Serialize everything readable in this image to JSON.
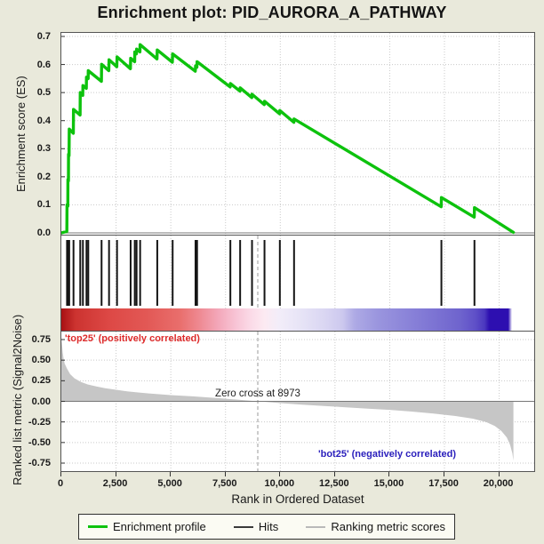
{
  "title": "Enrichment plot: PID_AURORA_A_PATHWAY",
  "axes": {
    "x_label": "Rank in Ordered Dataset",
    "es_axis_label": "Enrichment score (ES)",
    "metric_axis_label": "Ranked list metric (Signal2Noise)",
    "x_max": 21600,
    "es_range": [
      0.0,
      0.7
    ],
    "metric_range": [
      -0.75,
      0.75
    ],
    "grid": "dotted",
    "x_ticks": [
      {
        "v": 0,
        "label": "0"
      },
      {
        "v": 2500,
        "label": "2,500"
      },
      {
        "v": 5000,
        "label": "5,000"
      },
      {
        "v": 7500,
        "label": "7,500"
      },
      {
        "v": 10000,
        "label": "10,000"
      },
      {
        "v": 12500,
        "label": "12,500"
      },
      {
        "v": 15000,
        "label": "15,000"
      },
      {
        "v": 17500,
        "label": "17,500"
      },
      {
        "v": 20000,
        "label": "20,000"
      }
    ],
    "es_ticks": [
      {
        "v": 0.0,
        "label": "0.0"
      },
      {
        "v": 0.1,
        "label": "0.1"
      },
      {
        "v": 0.2,
        "label": "0.2"
      },
      {
        "v": 0.3,
        "label": "0.3"
      },
      {
        "v": 0.4,
        "label": "0.4"
      },
      {
        "v": 0.5,
        "label": "0.5"
      },
      {
        "v": 0.6,
        "label": "0.6"
      },
      {
        "v": 0.7,
        "label": "0.7"
      }
    ],
    "metric_ticks": [
      {
        "v": 0.75,
        "label": "0.75"
      },
      {
        "v": 0.5,
        "label": "0.50"
      },
      {
        "v": 0.25,
        "label": "0.25"
      },
      {
        "v": 0.0,
        "label": "0.00"
      },
      {
        "v": -0.25,
        "label": "-0.25"
      },
      {
        "v": -0.5,
        "label": "-0.50"
      },
      {
        "v": -0.75,
        "label": "-0.75"
      }
    ]
  },
  "annotations": {
    "top": "'top25' (positively correlated)",
    "zero": "Zero cross at 8973",
    "bottom": "'bot25' (negatively correlated)",
    "zero_cross_rank": 8973,
    "top_color": "#DE2B2B",
    "zero_color": "#222222",
    "bottom_color": "#2A1FBC"
  },
  "legend": {
    "items": [
      {
        "label": "Enrichment profile",
        "color": "#0DC20D"
      },
      {
        "label": "Hits",
        "color": "#3A3A3A"
      },
      {
        "label": "Ranking metric scores",
        "color": "#B9B9B9"
      }
    ]
  },
  "colors": {
    "background": "#E9E9DB",
    "panel_bg": "#FFFFFF",
    "panel_border": "#555555",
    "gridline": "#C9C9C9",
    "zero_line": "#777777",
    "dashed_line": "#9A9A9A",
    "es_curve": "#0DC20D",
    "hit_line": "#151515",
    "metric_area": "#C6C6C6"
  },
  "chart_data": [
    {
      "type": "line",
      "name": "enrichment_profile",
      "color": "#0DC20D",
      "x_label": "Rank in Ordered Dataset",
      "y_label": "Enrichment score (ES)",
      "ylim": [
        0.0,
        0.7
      ],
      "peak_es": 0.671,
      "points": [
        [
          0,
          0.0
        ],
        [
          250,
          0.005
        ],
        [
          260,
          0.1
        ],
        [
          295,
          0.095
        ],
        [
          300,
          0.19
        ],
        [
          325,
          0.185
        ],
        [
          330,
          0.28
        ],
        [
          355,
          0.275
        ],
        [
          360,
          0.37
        ],
        [
          550,
          0.355
        ],
        [
          556,
          0.44
        ],
        [
          855,
          0.42
        ],
        [
          864,
          0.5
        ],
        [
          980,
          0.49
        ],
        [
          986,
          0.525
        ],
        [
          1140,
          0.515
        ],
        [
          1150,
          0.555
        ],
        [
          1225,
          0.55
        ],
        [
          1230,
          0.578
        ],
        [
          1830,
          0.54
        ],
        [
          1838,
          0.601
        ],
        [
          2170,
          0.578
        ],
        [
          2179,
          0.617
        ],
        [
          2535,
          0.592
        ],
        [
          2544,
          0.627
        ],
        [
          3155,
          0.585
        ],
        [
          3165,
          0.622
        ],
        [
          3350,
          0.61
        ],
        [
          3355,
          0.645
        ],
        [
          3430,
          0.638
        ],
        [
          3437,
          0.655
        ],
        [
          3590,
          0.645
        ],
        [
          3599,
          0.671
        ],
        [
          4370,
          0.62
        ],
        [
          4382,
          0.652
        ],
        [
          5070,
          0.608
        ],
        [
          5084,
          0.638
        ],
        [
          6120,
          0.576
        ],
        [
          6130,
          0.595
        ],
        [
          6190,
          0.59
        ],
        [
          6200,
          0.61
        ],
        [
          7710,
          0.52
        ],
        [
          7721,
          0.532
        ],
        [
          8160,
          0.505
        ],
        [
          8167,
          0.517
        ],
        [
          8700,
          0.482
        ],
        [
          8710,
          0.494
        ],
        [
          9270,
          0.457
        ],
        [
          9280,
          0.469
        ],
        [
          9970,
          0.424
        ],
        [
          9981,
          0.436
        ],
        [
          10620,
          0.394
        ],
        [
          10630,
          0.406
        ],
        [
          17350,
          0.093
        ],
        [
          17360,
          0.126
        ],
        [
          18860,
          0.056
        ],
        [
          18870,
          0.09
        ],
        [
          20650,
          0.002
        ]
      ]
    },
    {
      "type": "hits",
      "name": "hits",
      "color": "#151515",
      "ranks": [
        260,
        300,
        330,
        360,
        556,
        864,
        986,
        1150,
        1230,
        1838,
        2179,
        2544,
        3165,
        3355,
        3437,
        3599,
        4382,
        5084,
        6130,
        6200,
        7721,
        8167,
        8710,
        9280,
        9981,
        10630,
        17360,
        18870
      ]
    },
    {
      "type": "area",
      "name": "ranking_metric_scores",
      "color": "#C6C6C6",
      "y_label": "Ranked list metric (Signal2Noise)",
      "ylim": [
        -0.75,
        0.75
      ],
      "zero_cross": 8973,
      "points": [
        [
          0,
          0.78
        ],
        [
          30,
          0.7
        ],
        [
          60,
          0.6
        ],
        [
          100,
          0.52
        ],
        [
          150,
          0.46
        ],
        [
          250,
          0.4
        ],
        [
          400,
          0.33
        ],
        [
          600,
          0.28
        ],
        [
          900,
          0.235
        ],
        [
          1200,
          0.205
        ],
        [
          1600,
          0.18
        ],
        [
          2000,
          0.16
        ],
        [
          2500,
          0.14
        ],
        [
          3000,
          0.122
        ],
        [
          3500,
          0.108
        ],
        [
          4000,
          0.096
        ],
        [
          5000,
          0.076
        ],
        [
          6000,
          0.06
        ],
        [
          7000,
          0.042
        ],
        [
          8000,
          0.022
        ],
        [
          8973,
          0.0
        ],
        [
          10000,
          -0.022
        ],
        [
          11000,
          -0.04
        ],
        [
          12000,
          -0.056
        ],
        [
          13000,
          -0.072
        ],
        [
          14000,
          -0.088
        ],
        [
          15000,
          -0.104
        ],
        [
          16000,
          -0.124
        ],
        [
          17000,
          -0.148
        ],
        [
          18000,
          -0.178
        ],
        [
          18800,
          -0.21
        ],
        [
          19400,
          -0.25
        ],
        [
          19800,
          -0.3
        ],
        [
          20100,
          -0.36
        ],
        [
          20350,
          -0.44
        ],
        [
          20500,
          -0.53
        ],
        [
          20600,
          -0.63
        ],
        [
          20650,
          -0.72
        ]
      ]
    },
    {
      "type": "colorbar",
      "name": "correlation_colorbar",
      "stops": [
        [
          0,
          "#A81114"
        ],
        [
          0.03,
          "#CC3330"
        ],
        [
          0.1,
          "#DD4845"
        ],
        [
          0.18,
          "#E25855"
        ],
        [
          0.25,
          "#E96E6C"
        ],
        [
          0.29,
          "#EE8890"
        ],
        [
          0.33,
          "#F3A6B8"
        ],
        [
          0.37,
          "#F8C5D6"
        ],
        [
          0.4,
          "#FBDAE7"
        ],
        [
          0.43,
          "#FCEAF2"
        ],
        [
          0.46,
          "#F2EDF9"
        ],
        [
          0.51,
          "#E6E3F6"
        ],
        [
          0.56,
          "#D9D5F2"
        ],
        [
          0.595,
          "#CCC8EE"
        ],
        [
          0.62,
          "#AEAAE5"
        ],
        [
          0.67,
          "#9A95DE"
        ],
        [
          0.73,
          "#8B84D9"
        ],
        [
          0.79,
          "#7C73D3"
        ],
        [
          0.845,
          "#6E63CD"
        ],
        [
          0.875,
          "#5F50C8"
        ],
        [
          0.895,
          "#4B38BF"
        ],
        [
          0.905,
          "#2D0FB0"
        ],
        [
          0.945,
          "#2D0FB0"
        ],
        [
          0.953,
          "#FFFFFF"
        ],
        [
          1,
          "#FFFFFF"
        ]
      ]
    }
  ]
}
